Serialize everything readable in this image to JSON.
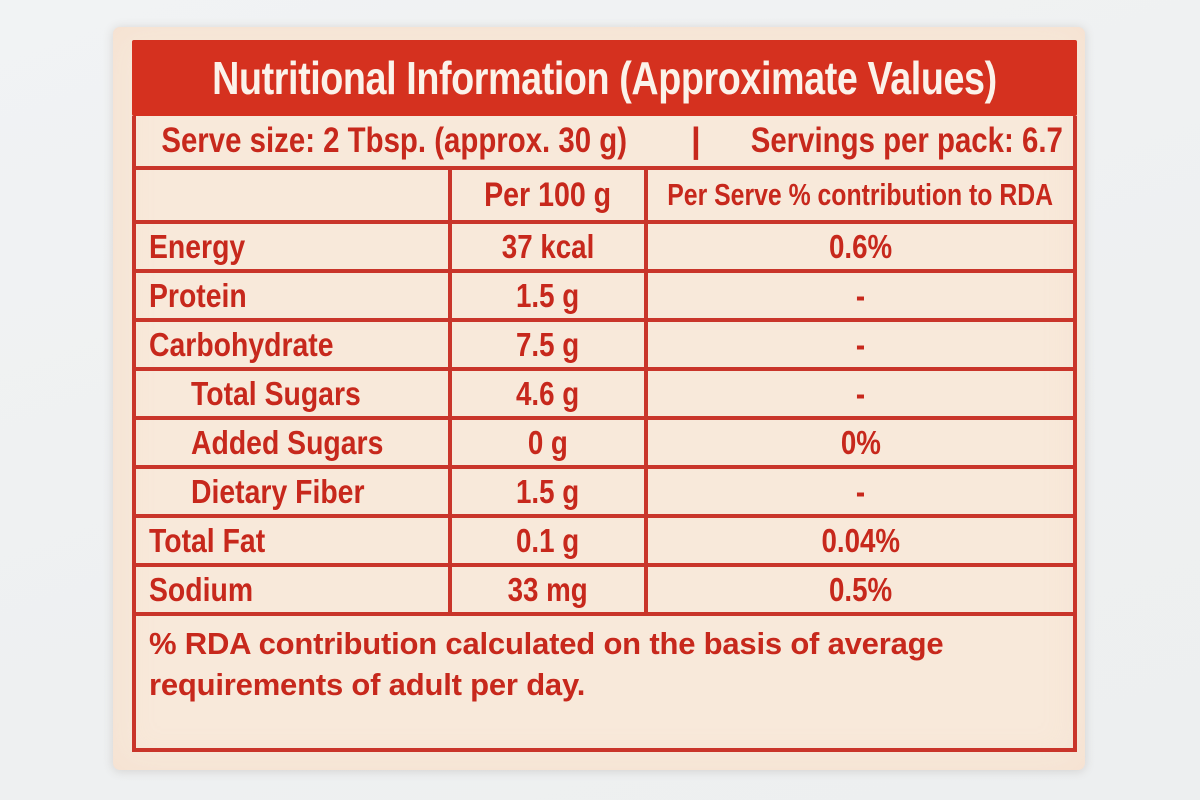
{
  "colors": {
    "page_background": "#eff1f2",
    "label_background": "#f8e9da",
    "accent_red": "#d5311f",
    "border_red": "#c9352a",
    "text_red": "#c7281c",
    "title_text": "#fbf2ea"
  },
  "label": {
    "title": "Nutritional Information (Approximate Values)",
    "serve_info": {
      "serve_size": "Serve size: 2 Tbsp. (approx. 30 g)",
      "separator": "|",
      "servings_per_pack": "Servings per pack: 6.7"
    },
    "table": {
      "headers": {
        "nutrient": "",
        "per_100g": "Per 100 g",
        "per_serve_rda": "Per Serve % contribution to RDA"
      },
      "rows": [
        {
          "nutrient": "Energy",
          "indent": false,
          "per_100g": "37 kcal",
          "per_serve_rda": "0.6%"
        },
        {
          "nutrient": "Protein",
          "indent": false,
          "per_100g": "1.5 g",
          "per_serve_rda": "-"
        },
        {
          "nutrient": "Carbohydrate",
          "indent": false,
          "per_100g": "7.5 g",
          "per_serve_rda": "-"
        },
        {
          "nutrient": "Total Sugars",
          "indent": true,
          "per_100g": "4.6 g",
          "per_serve_rda": "-"
        },
        {
          "nutrient": "Added Sugars",
          "indent": true,
          "per_100g": "0 g",
          "per_serve_rda": "0%"
        },
        {
          "nutrient": "Dietary Fiber",
          "indent": true,
          "per_100g": "1.5 g",
          "per_serve_rda": "-"
        },
        {
          "nutrient": "Total Fat",
          "indent": false,
          "per_100g": "0.1 g",
          "per_serve_rda": "0.04%"
        },
        {
          "nutrient": "Sodium",
          "indent": false,
          "per_100g": "33 mg",
          "per_serve_rda": "0.5%"
        }
      ]
    },
    "footnote": "% RDA contribution calculated on the basis of average requirements of adult per day."
  }
}
